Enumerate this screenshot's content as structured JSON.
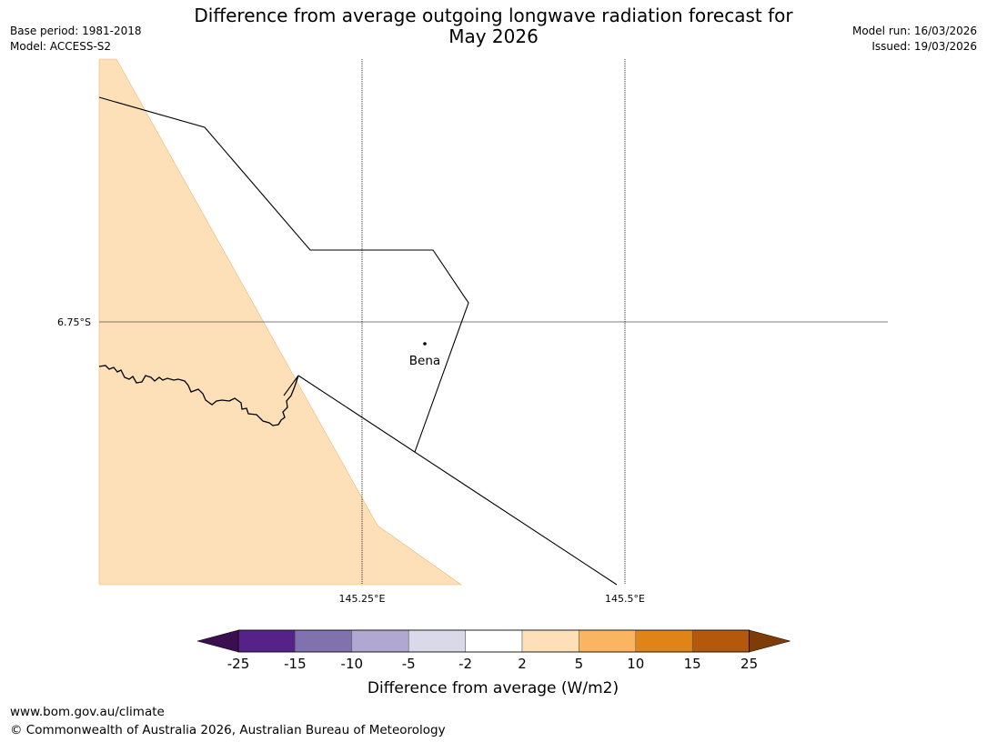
{
  "header": {
    "title_line1": "Difference from average outgoing longwave radiation forecast for",
    "title_line2": "May 2026",
    "base_period": "Base period: 1981-2018",
    "model": "Model: ACCESS-S2",
    "model_run": "Model run: 16/03/2026",
    "issued": "Issued: 19/03/2026"
  },
  "map": {
    "lat_label": "6.75°S",
    "lon_labels": [
      "145.25°E",
      "145.5°E"
    ],
    "place": {
      "name": "Bena"
    },
    "colors": {
      "anomaly_fill": "#fde0b8",
      "boundary": "#000000",
      "gridline": "#555555"
    }
  },
  "colorbar": {
    "ticks": [
      "-25",
      "-15",
      "-10",
      "-5",
      "-2",
      "2",
      "5",
      "10",
      "15",
      "25"
    ],
    "colors": [
      "#3b0f4f",
      "#552288",
      "#8171ae",
      "#b1a8d1",
      "#d9d9ea",
      "#ffffff",
      "#fde0b8",
      "#fbb460",
      "#e08418",
      "#b4580b",
      "#7f3b08"
    ],
    "label": "Difference from average (W/m2)"
  },
  "footer": {
    "url": "www.bom.gov.au/climate",
    "copyright": "© Commonwealth of Australia 2026, Australian Bureau of Meteorology"
  }
}
